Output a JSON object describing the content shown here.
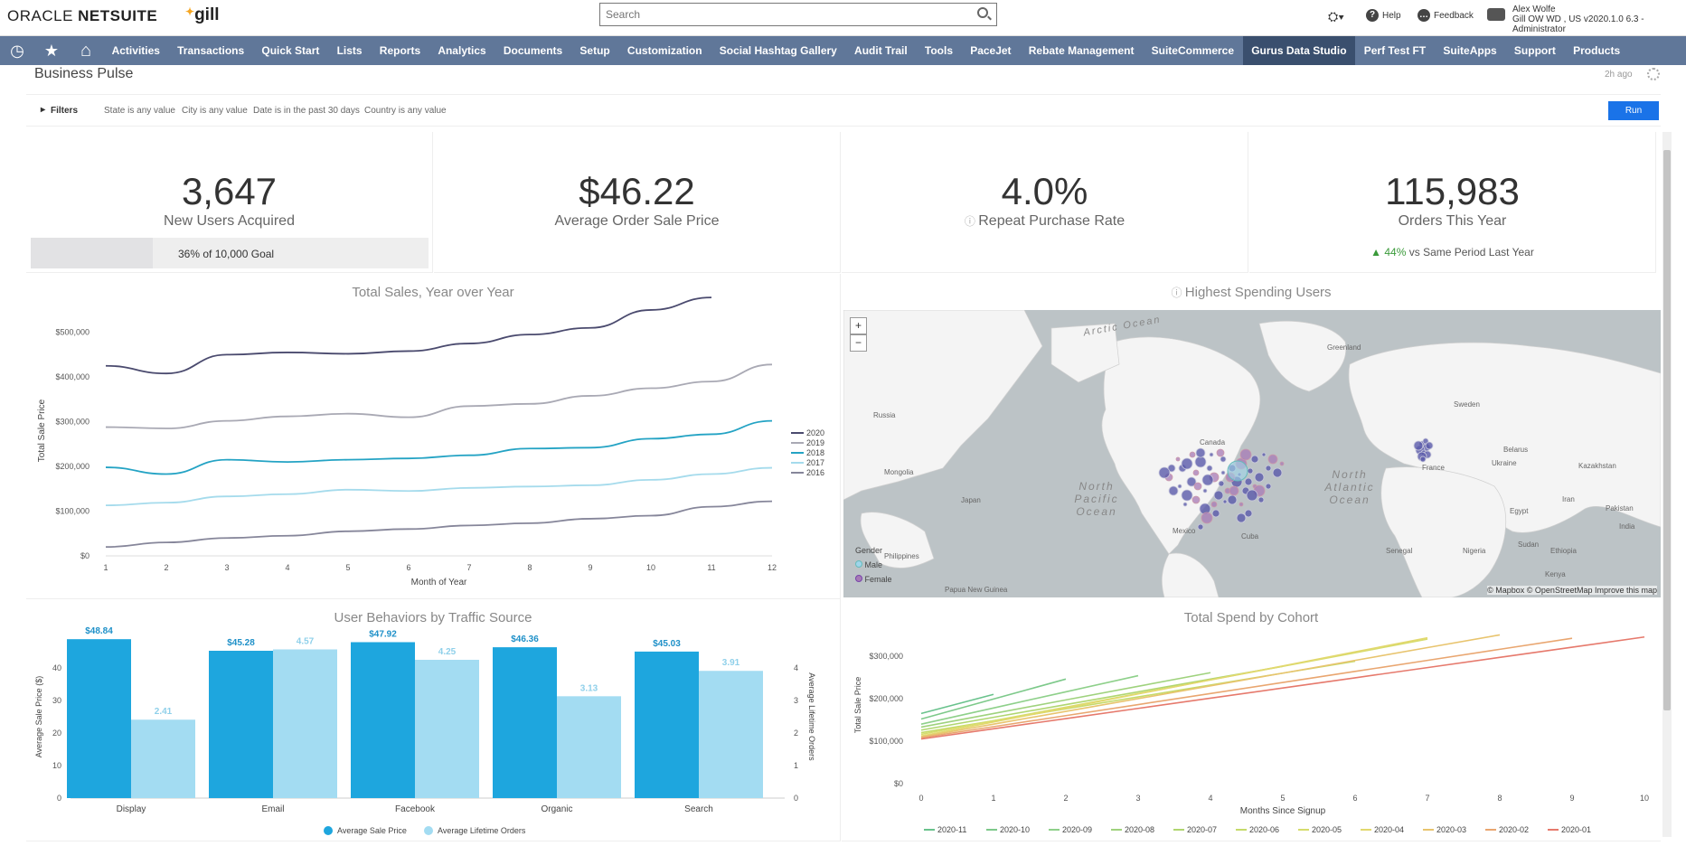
{
  "topbar": {
    "logo_prefix": "ORACLE",
    "logo_suffix": "NETSUITE",
    "brand": "gill",
    "search_placeholder": "Search",
    "help": "Help",
    "feedback": "Feedback",
    "user_name": "Alex Wolfe",
    "user_role": "Gill OW WD , US v2020.1.0 6.3 - Administrator"
  },
  "nav": {
    "items": [
      "Activities",
      "Transactions",
      "Quick Start",
      "Lists",
      "Reports",
      "Analytics",
      "Documents",
      "Setup",
      "Customization",
      "Social Hashtag Gallery",
      "Audit Trail",
      "Tools",
      "PaceJet",
      "Rebate Management",
      "SuiteCommerce",
      "Gurus Data Studio",
      "Perf Test FT",
      "SuiteApps",
      "Support",
      "Products"
    ],
    "active": "Gurus Data Studio"
  },
  "dashboard": {
    "title": "Business Pulse",
    "updated": "2h ago",
    "filters_label": "Filters",
    "filters": [
      "State is any value",
      "City is any value",
      "Date is in the past 30 days",
      "Country is any value"
    ],
    "run_label": "Run"
  },
  "kpis": {
    "users": {
      "value": "3,647",
      "label": "New Users Acquired",
      "goal_pct": 36,
      "goal_text": "36% of 10,000 Goal"
    },
    "aov": {
      "value": "$46.22",
      "label": "Average Order Sale Price"
    },
    "repeat": {
      "value": "4.0%",
      "label": "Repeat Purchase Rate"
    },
    "orders": {
      "value": "115,983",
      "label": "Orders This Year",
      "change": "▲ 44%",
      "change_text": "vs Same Period Last Year"
    }
  },
  "map": {
    "title": "Highest Spending Users",
    "legend_title": "Gender",
    "legend": [
      "Male",
      "Female"
    ],
    "attribution": "© Mapbox © OpenStreetMap Improve this map",
    "zoom_in": "+",
    "zoom_out": "−",
    "labels": {
      "arctic": "Arctic Ocean",
      "greenland": "Greenland",
      "russia": "Russia",
      "canada": "Canada",
      "mongolia": "Mongolia",
      "japan": "Japan",
      "philippines": "Philippines",
      "png": "Papua New Guinea",
      "npo": "North Pacific Ocean",
      "nao": "North Atlantic Ocean",
      "mexico": "Mexico",
      "cuba": "Cuba",
      "france": "France",
      "sweden": "Sweden",
      "belarus": "Belarus",
      "ukraine": "Ukraine",
      "kazakhstan": "Kazakhstan",
      "egypt": "Egypt",
      "senegal": "Senegal",
      "nigeria": "Nigeria",
      "ethiopia": "Ethiopia",
      "kenya": "Kenya",
      "pakistan": "Pakistan",
      "india": "India",
      "iran": "Iran",
      "sudan": "Sudan"
    }
  },
  "chart_data": [
    {
      "type": "line",
      "title": "Total Sales, Year over Year",
      "xlabel": "Month of Year",
      "ylabel": "Total Sale Price",
      "x": [
        1,
        2,
        3,
        4,
        5,
        6,
        7,
        8,
        9,
        10,
        11,
        12
      ],
      "ylim": [
        0,
        560000
      ],
      "yticks": [
        "$0",
        "$100,000",
        "$200,000",
        "$300,000",
        "$400,000",
        "$500,000"
      ],
      "legend_position": "right",
      "series": [
        {
          "name": "2020",
          "color": "#4a4a6e",
          "values": [
            425000,
            408000,
            450000,
            455000,
            452000,
            458000,
            475000,
            495000,
            510000,
            550000,
            578000,
            null
          ]
        },
        {
          "name": "2019",
          "color": "#a9a9b4",
          "values": [
            288000,
            285000,
            302000,
            312000,
            318000,
            310000,
            335000,
            340000,
            358000,
            375000,
            390000,
            428000
          ]
        },
        {
          "name": "2018",
          "color": "#24a3c4",
          "values": [
            198000,
            183000,
            215000,
            210000,
            215000,
            218000,
            225000,
            240000,
            242000,
            262000,
            272000,
            302000
          ]
        },
        {
          "name": "2017",
          "color": "#a5dbec",
          "values": [
            113000,
            119000,
            133000,
            138000,
            148000,
            145000,
            152000,
            155000,
            158000,
            170000,
            183000,
            197000
          ]
        },
        {
          "name": "2016",
          "color": "#86869a",
          "values": [
            20000,
            30000,
            40000,
            45000,
            55000,
            60000,
            68000,
            73000,
            83000,
            90000,
            110000,
            122000
          ]
        }
      ]
    },
    {
      "type": "bar",
      "title": "User Behaviors by Traffic Source",
      "categories": [
        "Display",
        "Email",
        "Facebook",
        "Organic",
        "Search"
      ],
      "ylabel": "Average Sale Price ($)",
      "y2label": "Average Lifetime Orders",
      "ylim": [
        0,
        50
      ],
      "y2lim": [
        0,
        5
      ],
      "legend_position": "bottom",
      "series": [
        {
          "name": "Average Sale Price",
          "color": "#1ea6de",
          "axis": "left",
          "values": [
            48.84,
            45.28,
            47.92,
            46.36,
            45.03
          ],
          "labels": [
            "$48.84",
            "$45.28",
            "$47.92",
            "$46.36",
            "$45.03"
          ]
        },
        {
          "name": "Average Lifetime Orders",
          "color": "#a3dcf2",
          "axis": "right",
          "values": [
            2.41,
            4.57,
            4.25,
            3.13,
            3.91
          ],
          "labels": [
            "2.41",
            "4.57",
            "4.25",
            "3.13",
            "3.91"
          ]
        }
      ]
    },
    {
      "type": "line",
      "title": "Total Spend by Cohort",
      "xlabel": "Months Since Signup",
      "ylabel": "Total Sale Price",
      "x": [
        0,
        1,
        2,
        3,
        4,
        5,
        6,
        7,
        8,
        9,
        10
      ],
      "ylim": [
        0,
        370000
      ],
      "yticks": [
        "$0",
        "$100,000",
        "$200,000",
        "$300,000"
      ],
      "legend_position": "bottom",
      "series": [
        {
          "name": "2020-11",
          "color": "#69c28c",
          "end": 1,
          "start": 165000,
          "slope": 45000
        },
        {
          "name": "2020-10",
          "color": "#7dc98a",
          "end": 2,
          "start": 152000,
          "slope": 47000
        },
        {
          "name": "2020-09",
          "color": "#8ed08a",
          "end": 3,
          "start": 140000,
          "slope": 38000
        },
        {
          "name": "2020-08",
          "color": "#9fd27d",
          "end": 4,
          "start": 133000,
          "slope": 32000
        },
        {
          "name": "2020-07",
          "color": "#b0d670",
          "end": 5,
          "start": 126000,
          "slope": 30000
        },
        {
          "name": "2020-06",
          "color": "#c5da6a",
          "end": 6,
          "start": 120000,
          "slope": 28000
        },
        {
          "name": "2020-05",
          "color": "#d6dc6c",
          "end": 7,
          "start": 116000,
          "slope": 32000
        },
        {
          "name": "2020-04",
          "color": "#e2d86e",
          "end": 7,
          "start": 112000,
          "slope": 33000
        },
        {
          "name": "2020-03",
          "color": "#e8c46e",
          "end": 8,
          "start": 110000,
          "slope": 30000
        },
        {
          "name": "2020-02",
          "color": "#e9a670",
          "end": 9,
          "start": 108000,
          "slope": 26000
        },
        {
          "name": "2020-01",
          "color": "#e6796c",
          "end": 10,
          "start": 105000,
          "slope": 24000
        }
      ]
    }
  ]
}
